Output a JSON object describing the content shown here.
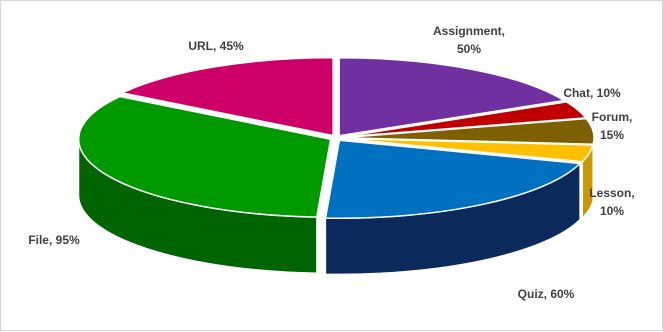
{
  "chart_data": {
    "type": "pie",
    "style": "3d-exploded",
    "title": "",
    "legend": "none",
    "slices": [
      {
        "name": "Assignment",
        "value": 50,
        "label_lines": [
          "Assignment,",
          "50%"
        ],
        "color": "#7030A0",
        "side_color": "#4B1F6E"
      },
      {
        "name": "Chat",
        "value": 10,
        "label_lines": [
          "Chat, 10%"
        ],
        "color": "#C00000",
        "side_color": "#800000"
      },
      {
        "name": "Forum",
        "value": 15,
        "label_lines": [
          "Forum,",
          "15%"
        ],
        "color": "#7F6000",
        "side_color": "#554000"
      },
      {
        "name": "Lesson",
        "value": 10,
        "label_lines": [
          "Lesson,",
          "10%"
        ],
        "color": "#FFC000",
        "side_color": "#C99700"
      },
      {
        "name": "Quiz",
        "value": 60,
        "label_lines": [
          "Quiz, 60%"
        ],
        "color": "#0070C0",
        "side_color": "#0B2A5B"
      },
      {
        "name": "File",
        "value": 95,
        "label_lines": [
          "File, 95%"
        ],
        "color": "#009900",
        "side_color": "#006400"
      },
      {
        "name": "URL",
        "value": 45,
        "label_lines": [
          "URL, 45%"
        ],
        "color": "#CC0066",
        "side_color": "#8E0047"
      }
    ]
  }
}
